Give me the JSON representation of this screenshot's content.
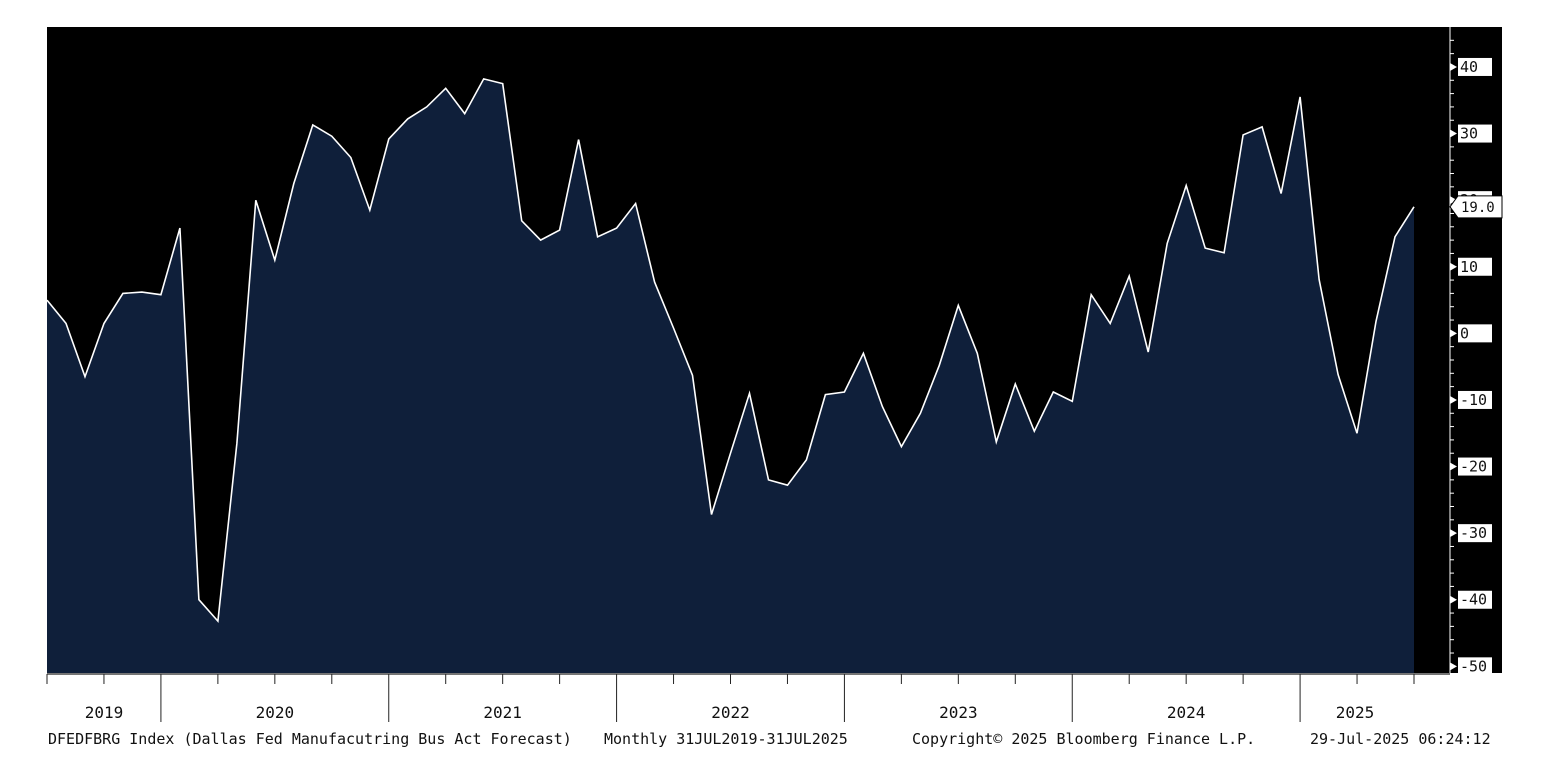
{
  "chart_data": {
    "type": "area",
    "frequency": "Monthly",
    "x_start": "2019-07",
    "x_end": "2025-07",
    "x": [
      "2019-07",
      "2019-08",
      "2019-09",
      "2019-10",
      "2019-11",
      "2019-12",
      "2020-01",
      "2020-02",
      "2020-03",
      "2020-04",
      "2020-05",
      "2020-06",
      "2020-07",
      "2020-08",
      "2020-09",
      "2020-10",
      "2020-11",
      "2020-12",
      "2021-01",
      "2021-02",
      "2021-03",
      "2021-04",
      "2021-05",
      "2021-06",
      "2021-07",
      "2021-08",
      "2021-09",
      "2021-10",
      "2021-11",
      "2021-12",
      "2022-01",
      "2022-02",
      "2022-03",
      "2022-04",
      "2022-05",
      "2022-06",
      "2022-07",
      "2022-08",
      "2022-09",
      "2022-10",
      "2022-11",
      "2022-12",
      "2023-01",
      "2023-02",
      "2023-03",
      "2023-04",
      "2023-05",
      "2023-06",
      "2023-07",
      "2023-08",
      "2023-09",
      "2023-10",
      "2023-11",
      "2023-12",
      "2024-01",
      "2024-02",
      "2024-03",
      "2024-04",
      "2024-05",
      "2024-06",
      "2024-07",
      "2024-08",
      "2024-09",
      "2024-10",
      "2024-11",
      "2024-12",
      "2025-01",
      "2025-02",
      "2025-03",
      "2025-04",
      "2025-05",
      "2025-06",
      "2025-07"
    ],
    "values": [
      5.0,
      1.5,
      -6.5,
      1.5,
      6.0,
      6.2,
      5.8,
      15.8,
      -40.0,
      -43.2,
      -16.5,
      20.0,
      11.0,
      22.5,
      31.3,
      29.6,
      26.4,
      18.5,
      29.2,
      32.2,
      34.0,
      36.8,
      33.0,
      38.2,
      37.5,
      16.9,
      14.0,
      15.5,
      29.1,
      14.5,
      15.8,
      19.5,
      7.7,
      0.8,
      -6.3,
      -27.2,
      -18.0,
      -9.0,
      -22.0,
      -22.8,
      -19.0,
      -9.2,
      -8.8,
      -3.0,
      -11.0,
      -17.0,
      -12.0,
      -4.8,
      4.2,
      -3.0,
      -16.3,
      -7.6,
      -14.7,
      -8.8,
      -10.2,
      5.8,
      1.5,
      8.6,
      -2.8,
      13.5,
      22.2,
      12.8,
      12.1,
      29.8,
      31.0,
      21.0,
      35.5,
      8.1,
      -6.2,
      -15.0,
      1.8,
      14.5,
      19.0
    ],
    "y_ticks": [
      40,
      30,
      20,
      10,
      0,
      -10,
      -20,
      -30,
      -40,
      -50
    ],
    "y_tick_labels": [
      "40",
      "30",
      "20",
      "10",
      "0",
      "-10",
      "-20",
      "-30",
      "-40",
      "-50"
    ],
    "ylim": [
      -51,
      46
    ],
    "year_labels": [
      "2019",
      "2020",
      "2021",
      "2022",
      "2023",
      "2024",
      "2025"
    ],
    "last_value_label": "19.0",
    "colors": {
      "plot_background": "#000000",
      "area_fill": "#0f1f3a",
      "line": "#ffffff",
      "axis_line": "#ffffff"
    }
  },
  "footer": {
    "ticker": "DFEDFBRG Index (Dallas Fed Manufacutring Bus Act Forecast)",
    "range": "Monthly 31JUL2019-31JUL2025",
    "copyright": "Copyright© 2025 Bloomberg Finance L.P.",
    "timestamp": "29-Jul-2025 06:24:12"
  }
}
